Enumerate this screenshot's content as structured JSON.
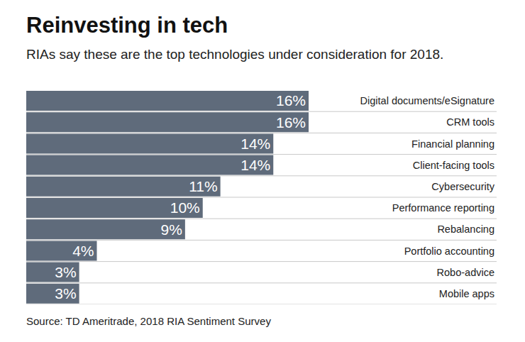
{
  "chart_data": {
    "type": "bar",
    "orientation": "horizontal",
    "title": "Reinvesting in tech",
    "subtitle": "RIAs say these are the top technologies under consideration for 2018.",
    "source": "Source: TD Ameritrade, 2018 RIA Sentiment Survey",
    "categories": [
      "Digital documents/eSignature",
      "CRM tools",
      "Financial planning",
      "Client-facing tools",
      "Cybersecurity",
      "Performance reporting",
      "Rebalancing",
      "Portfolio accounting",
      "Robo-advice",
      "Mobile apps"
    ],
    "values": [
      16,
      16,
      14,
      14,
      11,
      10,
      9,
      4,
      3,
      3
    ],
    "value_labels": [
      "16%",
      "16%",
      "14%",
      "14%",
      "11%",
      "10%",
      "9%",
      "4%",
      "3%",
      "3%"
    ],
    "data_labels": true,
    "tick_labels": "y",
    "xlim": [
      0,
      16
    ],
    "color": "#5f6b7b"
  }
}
